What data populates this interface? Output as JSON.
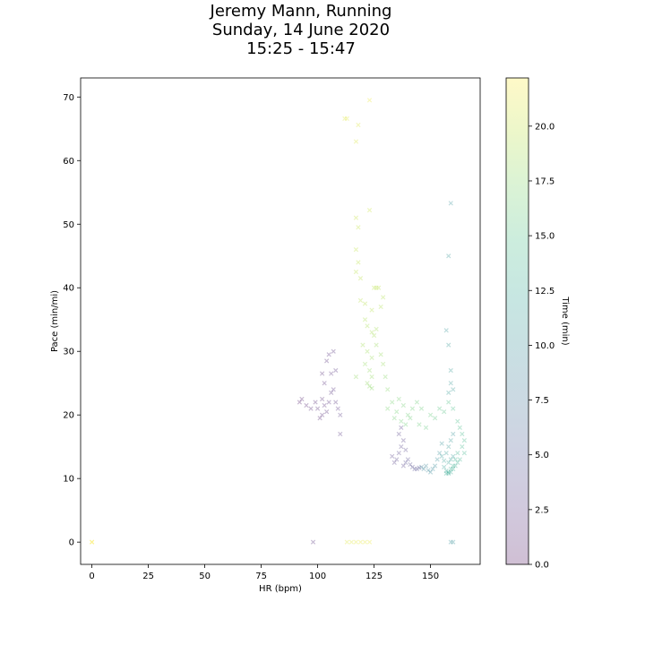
{
  "title": {
    "line1": "Jeremy Mann, Running",
    "line2": "Sunday, 14 June 2020",
    "line3": "15:25 - 15:47"
  },
  "chart_data": {
    "type": "scatter",
    "xlabel": "HR (bpm)",
    "ylabel": "Pace (min/mi)",
    "colorbar_label": "Time (min)",
    "xlim": [
      -5,
      172
    ],
    "ylim": [
      -3.5,
      73
    ],
    "clim": [
      0,
      22.2
    ],
    "xticks": [
      0,
      25,
      50,
      75,
      100,
      125,
      150
    ],
    "yticks": [
      0,
      10,
      20,
      30,
      40,
      50,
      60,
      70
    ],
    "cticks": [
      "0.0",
      "2.5",
      "5.0",
      "7.5",
      "10.0",
      "12.5",
      "15.0",
      "17.5",
      "20.0"
    ],
    "colormap": [
      "#440154",
      "#482878",
      "#3e4989",
      "#31688e",
      "#26828e",
      "#1f9e89",
      "#35b779",
      "#6ece58",
      "#b5de2b",
      "#fde725"
    ],
    "marker": "x",
    "alpha": 0.2,
    "grid": false,
    "points": [
      [
        0,
        0,
        22.0
      ],
      [
        0,
        0,
        22.1
      ],
      [
        98,
        0,
        2.0
      ],
      [
        159,
        0,
        10.0
      ],
      [
        160,
        0,
        10.1
      ],
      [
        113,
        0,
        21.0
      ],
      [
        115,
        0,
        21.1
      ],
      [
        117,
        0,
        21.2
      ],
      [
        119,
        0,
        21.3
      ],
      [
        121,
        0,
        21.4
      ],
      [
        123,
        0,
        21.5
      ],
      [
        112,
        66.6,
        21.0
      ],
      [
        113,
        66.6,
        21.1
      ],
      [
        117,
        63.0,
        20.8
      ],
      [
        123,
        69.5,
        21.5
      ],
      [
        118,
        65.6,
        20.9
      ],
      [
        123,
        52.2,
        20.2
      ],
      [
        117,
        51.0,
        20.0
      ],
      [
        118,
        49.5,
        19.9
      ],
      [
        117,
        46.0,
        19.8
      ],
      [
        118,
        44.0,
        19.7
      ],
      [
        117,
        42.5,
        19.6
      ],
      [
        119,
        41.5,
        19.5
      ],
      [
        125,
        40.0,
        19.6
      ],
      [
        126,
        40.0,
        19.6
      ],
      [
        127,
        40.0,
        19.5
      ],
      [
        119,
        38.0,
        19.4
      ],
      [
        121,
        37.5,
        19.3
      ],
      [
        124,
        36.5,
        19.3
      ],
      [
        129,
        38.5,
        19.2
      ],
      [
        128,
        37.0,
        19.1
      ],
      [
        121,
        35.0,
        19.0
      ],
      [
        122,
        34.0,
        18.9
      ],
      [
        124,
        33.0,
        18.8
      ],
      [
        125,
        32.5,
        18.7
      ],
      [
        126,
        33.5,
        18.6
      ],
      [
        120,
        31.0,
        18.6
      ],
      [
        122,
        30.0,
        18.5
      ],
      [
        124,
        29.0,
        18.4
      ],
      [
        126,
        31.0,
        18.3
      ],
      [
        128,
        29.5,
        18.2
      ],
      [
        129,
        28.0,
        18.2
      ],
      [
        121,
        28.0,
        18.1
      ],
      [
        123,
        27.0,
        18.0
      ],
      [
        124,
        26.0,
        18.0
      ],
      [
        122,
        25.0,
        17.9
      ],
      [
        123,
        24.5,
        17.8
      ],
      [
        124,
        24.2,
        17.7
      ],
      [
        117,
        26.0,
        17.9
      ],
      [
        130,
        26.0,
        17.6
      ],
      [
        131,
        24.0,
        17.5
      ],
      [
        133,
        22.0,
        17.0
      ],
      [
        131,
        21.0,
        16.9
      ],
      [
        136,
        22.5,
        16.8
      ],
      [
        135,
        20.5,
        16.7
      ],
      [
        138,
        21.5,
        16.6
      ],
      [
        140,
        20.0,
        16.5
      ],
      [
        142,
        21.0,
        16.4
      ],
      [
        144,
        22.0,
        16.3
      ],
      [
        146,
        21.0,
        16.2
      ],
      [
        134,
        19.5,
        16.6
      ],
      [
        137,
        19.0,
        16.5
      ],
      [
        139,
        18.5,
        16.4
      ],
      [
        141,
        19.5,
        16.3
      ],
      [
        145,
        18.5,
        16.2
      ],
      [
        150,
        20.0,
        16.0
      ],
      [
        148,
        18.0,
        15.8
      ],
      [
        152,
        19.5,
        15.6
      ],
      [
        154,
        21.0,
        15.4
      ],
      [
        156,
        20.5,
        15.2
      ],
      [
        158,
        22.0,
        15.0
      ],
      [
        160,
        21.0,
        14.8
      ],
      [
        162,
        19.0,
        14.6
      ],
      [
        163,
        18.0,
        14.4
      ],
      [
        164,
        17.0,
        14.2
      ],
      [
        165,
        16.0,
        14.0
      ],
      [
        164,
        15.0,
        13.8
      ],
      [
        165,
        14.0,
        13.6
      ],
      [
        163,
        13.0,
        13.4
      ],
      [
        162,
        12.5,
        13.2
      ],
      [
        161,
        12.0,
        13.0
      ],
      [
        160,
        11.5,
        12.8
      ],
      [
        159,
        11.0,
        12.6
      ],
      [
        158,
        10.8,
        12.4
      ],
      [
        157,
        11.2,
        12.2
      ],
      [
        156,
        11.8,
        12.0
      ],
      [
        158,
        12.5,
        11.8
      ],
      [
        159,
        13.0,
        11.6
      ],
      [
        160,
        13.5,
        11.4
      ],
      [
        157,
        14.0,
        11.2
      ],
      [
        158,
        15.0,
        11.0
      ],
      [
        159,
        16.0,
        10.8
      ],
      [
        160,
        17.0,
        10.6
      ],
      [
        155,
        15.5,
        10.4
      ],
      [
        154,
        14.0,
        10.2
      ],
      [
        153,
        13.0,
        10.0
      ],
      [
        152,
        12.0,
        9.8
      ],
      [
        151,
        11.5,
        9.6
      ],
      [
        150,
        11.0,
        9.4
      ],
      [
        149,
        11.3,
        9.2
      ],
      [
        148,
        12.0,
        9.0
      ],
      [
        147,
        11.5,
        8.8
      ],
      [
        146,
        11.8,
        8.6
      ],
      [
        157,
        10.8,
        12.5
      ],
      [
        158,
        11.0,
        12.7
      ],
      [
        159,
        11.5,
        12.9
      ],
      [
        160,
        12.0,
        13.1
      ],
      [
        161,
        13.0,
        13.3
      ],
      [
        162,
        14.0,
        13.5
      ],
      [
        156,
        12.8,
        11.5
      ],
      [
        155,
        13.5,
        11.3
      ],
      [
        159,
        53.3,
        10.5
      ],
      [
        158,
        45.0,
        10.7
      ],
      [
        157,
        33.3,
        10.6
      ],
      [
        158,
        31.0,
        10.8
      ],
      [
        159,
        27.0,
        10.9
      ],
      [
        159,
        25.0,
        11.0
      ],
      [
        160,
        24.0,
        11.1
      ],
      [
        158,
        23.5,
        11.2
      ],
      [
        138,
        12.0,
        3.5
      ],
      [
        139,
        12.5,
        3.6
      ],
      [
        140,
        13.0,
        3.7
      ],
      [
        141,
        12.2,
        3.8
      ],
      [
        142,
        11.8,
        3.9
      ],
      [
        143,
        11.5,
        4.0
      ],
      [
        144,
        11.5,
        4.1
      ],
      [
        145,
        11.7,
        4.2
      ],
      [
        135,
        13.0,
        3.4
      ],
      [
        136,
        14.0,
        3.3
      ],
      [
        137,
        15.0,
        3.2
      ],
      [
        138,
        16.0,
        3.1
      ],
      [
        136,
        17.0,
        3.0
      ],
      [
        137,
        18.0,
        2.9
      ],
      [
        139,
        14.5,
        3.5
      ],
      [
        134,
        12.5,
        3.2
      ],
      [
        133,
        13.5,
        3.1
      ],
      [
        92,
        22.0,
        1.0
      ],
      [
        93,
        22.5,
        1.1
      ],
      [
        95,
        21.5,
        1.2
      ],
      [
        97,
        21.0,
        1.3
      ],
      [
        99,
        22.0,
        1.4
      ],
      [
        100,
        21.0,
        1.5
      ],
      [
        102,
        22.5,
        1.6
      ],
      [
        103,
        21.5,
        1.7
      ],
      [
        104,
        20.5,
        1.8
      ],
      [
        105,
        22.0,
        1.9
      ],
      [
        106,
        23.5,
        2.0
      ],
      [
        107,
        24.0,
        2.1
      ],
      [
        108,
        22.0,
        2.2
      ],
      [
        109,
        21.0,
        2.3
      ],
      [
        110,
        20.0,
        2.4
      ],
      [
        104,
        28.5,
        1.8
      ],
      [
        105,
        29.5,
        1.9
      ],
      [
        107,
        30.0,
        2.0
      ],
      [
        108,
        27.0,
        2.1
      ],
      [
        106,
        26.5,
        2.2
      ],
      [
        103,
        25.0,
        1.7
      ],
      [
        102,
        26.5,
        1.6
      ],
      [
        110,
        17.0,
        2.5
      ],
      [
        102,
        20.0,
        1.5
      ],
      [
        101,
        19.5,
        1.4
      ]
    ]
  }
}
